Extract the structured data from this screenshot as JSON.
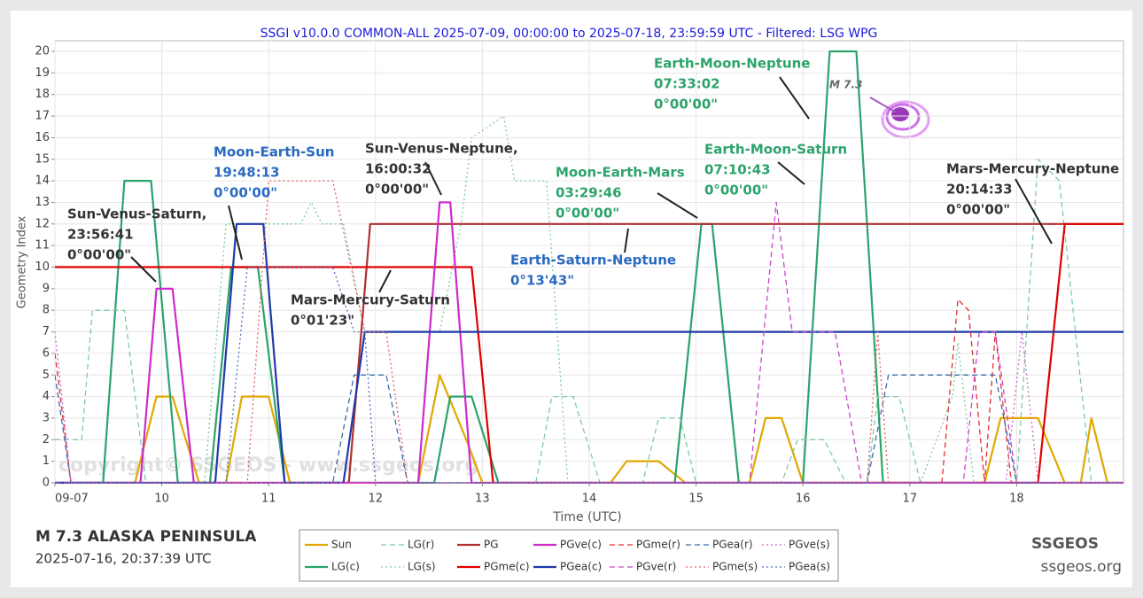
{
  "chart_data": {
    "type": "line",
    "title": "SSGI v10.0.0 COMMON-ALL 2025-07-09, 00:00:00 to 2025-07-18, 23:59:59 UTC - Filtered: LSG WPG",
    "x_label": "Time (UTC)",
    "y_label": "Geometry Index",
    "xlim": [
      9,
      19
    ],
    "xticks": [
      {
        "value": 9,
        "label": "09-07"
      },
      10,
      11,
      12,
      13,
      14,
      15,
      16,
      17,
      18
    ],
    "ylim": [
      0,
      20
    ],
    "yticks": [
      0,
      1,
      2,
      3,
      4,
      5,
      6,
      7,
      8,
      9,
      10,
      11,
      12,
      13,
      14,
      15,
      16,
      17,
      18,
      19,
      20
    ],
    "grid": true,
    "series": [
      {
        "name": "Sun",
        "color": "#e0a800",
        "style": "solid",
        "x": [
          9,
          9.75,
          9.95,
          10.1,
          10.35,
          10.6,
          10.75,
          11.0,
          11.2,
          12.4,
          12.6,
          12.85,
          13.0,
          14.2,
          14.35,
          14.65,
          14.9,
          15.5,
          15.65,
          15.8,
          16.0,
          17.7,
          17.85,
          18.2,
          18.45,
          18.6,
          18.7,
          18.85,
          19
        ],
        "values": [
          0,
          0,
          4,
          4,
          0,
          0,
          4,
          4,
          0,
          0,
          5,
          2,
          0,
          0,
          1,
          1,
          0,
          0,
          3,
          3,
          0,
          0,
          3,
          3,
          0,
          0,
          3,
          0,
          0
        ]
      },
      {
        "name": "LG(c)",
        "color": "#2ca36b",
        "style": "solid",
        "x": [
          9,
          9.45,
          9.65,
          9.9,
          10.15,
          10.45,
          10.65,
          10.9,
          11.15,
          12.55,
          12.7,
          12.9,
          13.15,
          14.8,
          15.05,
          15.15,
          15.4,
          16.0,
          16.25,
          16.5,
          16.75,
          19
        ],
        "values": [
          0,
          0,
          14,
          14,
          0,
          0,
          10,
          10,
          0,
          0,
          4,
          4,
          0,
          0,
          12,
          12,
          0,
          0,
          20,
          20,
          0,
          0
        ]
      },
      {
        "name": "LG(r)",
        "color": "#7fc9a8",
        "style": "dashed",
        "x": [
          9,
          9.25,
          9.35,
          9.65,
          9.85,
          13.5,
          13.65,
          13.85,
          14.1,
          14.5,
          14.65,
          14.85,
          15.0,
          15.8,
          15.95,
          16.2,
          16.4,
          16.6,
          16.7,
          16.9,
          17.1,
          18.0,
          18.2,
          18.4,
          18.7,
          19
        ],
        "values": [
          2,
          2,
          8,
          8,
          0,
          0,
          4,
          4,
          0,
          0,
          3,
          3,
          0,
          0,
          2,
          2,
          0,
          0,
          4,
          4,
          0,
          0,
          15,
          14,
          0,
          0
        ]
      },
      {
        "name": "LG(s)",
        "color": "#7fc9a8",
        "style": "dotted",
        "x": [
          9,
          10.4,
          10.6,
          11.3,
          11.4,
          11.5,
          11.7,
          11.9,
          12.6,
          12.8,
          12.9,
          13.2,
          13.3,
          13.6,
          13.8,
          17.1,
          17.4,
          17.45,
          17.6,
          19
        ],
        "values": [
          0,
          0,
          12,
          12,
          13,
          12,
          12,
          7,
          7,
          12,
          16,
          17,
          14,
          14,
          0,
          0,
          4,
          6.5,
          0,
          0
        ]
      },
      {
        "name": "PG",
        "color": "#b03030",
        "style": "solid",
        "x": [
          9,
          11.75,
          11.95,
          19
        ],
        "values": [
          0,
          0,
          12,
          12
        ]
      },
      {
        "name": "PGme(c)",
        "color": "#e00000",
        "style": "solid",
        "x": [
          9,
          12.9,
          13.1,
          18.2,
          18.45,
          19
        ],
        "values": [
          10,
          10,
          0,
          0,
          12,
          12
        ]
      },
      {
        "name": "PGve(c)",
        "color": "#cc2ccc",
        "style": "solid",
        "x": [
          9,
          9.8,
          9.95,
          10.1,
          10.3,
          12.4,
          12.6,
          12.7,
          12.9,
          19
        ],
        "values": [
          0,
          0,
          9,
          9,
          0,
          0,
          13,
          13,
          0,
          0
        ]
      },
      {
        "name": "PGea(c)",
        "color": "#1f3aa8",
        "style": "solid",
        "x": [
          9,
          10.5,
          10.7,
          10.95,
          11.15,
          11.7,
          11.9,
          19
        ],
        "values": [
          0,
          0,
          12,
          12,
          0,
          0,
          7,
          7
        ]
      },
      {
        "name": "PGme(r)",
        "color": "#e03030",
        "style": "dashed",
        "x": [
          9,
          9.15,
          17.3,
          17.45,
          17.55,
          17.7,
          17.8,
          17.95,
          19
        ],
        "values": [
          6,
          0,
          0,
          8.5,
          8,
          0,
          7,
          0,
          0
        ]
      },
      {
        "name": "PGve(r)",
        "color": "#cc44cc",
        "style": "dashed",
        "x": [
          9,
          15.5,
          15.75,
          15.9,
          16.3,
          16.55,
          17.5,
          17.65,
          17.8,
          18.0,
          19
        ],
        "values": [
          0,
          0,
          13,
          7,
          7,
          0,
          0,
          7,
          7,
          0,
          0
        ]
      },
      {
        "name": "PGea(r)",
        "color": "#3a6aa8",
        "style": "dashed",
        "x": [
          9,
          9.15,
          11.6,
          11.8,
          12.1,
          12.3,
          16.6,
          16.8,
          17.8,
          18.0,
          19
        ],
        "values": [
          5,
          0,
          0,
          5,
          5,
          0,
          0,
          5,
          5,
          0,
          0
        ]
      },
      {
        "name": "PGme(s)",
        "color": "#e06060",
        "style": "dotted",
        "x": [
          9,
          10.8,
          11.0,
          11.6,
          11.9,
          12.1,
          12.3,
          16.6,
          16.7,
          16.8,
          19
        ],
        "values": [
          0,
          0,
          14,
          14,
          7,
          7,
          0,
          0,
          7,
          0,
          0
        ]
      },
      {
        "name": "PGve(s)",
        "color": "#cc66cc",
        "style": "dotted",
        "x": [
          9,
          9.15,
          17.9,
          18.05,
          18.2,
          19
        ],
        "values": [
          7,
          0,
          0,
          7,
          0,
          0
        ]
      },
      {
        "name": "PGea(s)",
        "color": "#4a70c0",
        "style": "dotted",
        "x": [
          9,
          10.6,
          10.8,
          11.6,
          11.8,
          11.9,
          12.0,
          19
        ],
        "values": [
          0,
          0,
          10,
          10,
          7,
          7,
          0,
          0
        ]
      }
    ],
    "annotations": [
      {
        "color": "#333333",
        "lines": [
          "Sun-Venus-Saturn,",
          "23:56:41",
          "0°00'00\""
        ]
      },
      {
        "color": "#2a6ac0",
        "lines": [
          "Moon-Earth-Sun",
          "19:48:13",
          "0°00'00\""
        ]
      },
      {
        "color": "#333333",
        "lines": [
          "Sun-Venus-Neptune,",
          "16:00:32",
          "0°00'00\""
        ]
      },
      {
        "color": "#333333",
        "lines": [
          "Mars-Mercury-Saturn",
          "0°01'23\""
        ]
      },
      {
        "color": "#2a6ac0",
        "lines": [
          "Earth-Saturn-Neptune",
          "0°13'43\""
        ]
      },
      {
        "color": "#2ca36b",
        "lines": [
          "Moon-Earth-Mars",
          "03:29:46",
          "0°00'00\""
        ]
      },
      {
        "color": "#2ca36b",
        "lines": [
          "Earth-Moon-Saturn",
          "07:10:43",
          "0°00'00\""
        ]
      },
      {
        "color": "#2ca36b",
        "lines": [
          "Earth-Moon-Neptune",
          "07:33:02",
          "0°00'00\""
        ]
      },
      {
        "color": "#333333",
        "lines": [
          "Mars-Mercury-Neptune",
          "20:14:33",
          "0°00'00\""
        ]
      }
    ],
    "event_label": "M 7.3",
    "watermark": "copyright© SSGEOS - www.ssgeos.org"
  },
  "footer": {
    "event": "M 7.3 ALASKA PENINSULA",
    "time": "2025-07-16, 20:37:39 UTC",
    "brand": "SSGEOS",
    "site": "ssgeos.org"
  }
}
